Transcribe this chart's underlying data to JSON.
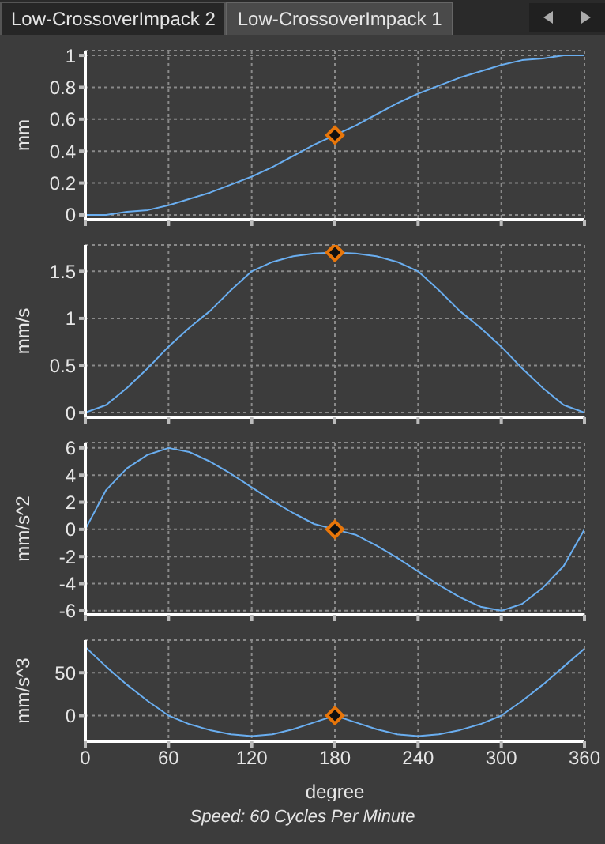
{
  "chart_data": [
    {
      "type": "line",
      "title": "Low-CrossoverImpack 1",
      "annotations": [
        "Low-CrossoverImpack 2"
      ],
      "ylabel": "mm",
      "x": [
        0,
        15,
        30,
        45,
        60,
        75,
        90,
        105,
        120,
        135,
        150,
        165,
        180,
        195,
        210,
        225,
        240,
        255,
        270,
        285,
        300,
        315,
        330,
        345,
        360
      ],
      "xlim": [
        0,
        360
      ],
      "xticks": [
        0,
        60,
        120,
        180,
        240,
        300,
        360
      ],
      "ylim": [
        -0.03,
        1.03
      ],
      "yticks": [
        0,
        0.2,
        0.4,
        0.6,
        0.8,
        1
      ],
      "grid": true,
      "tick_labels": "y",
      "series": [
        {
          "color": "#6aaef0",
          "values": [
            0,
            0,
            0.02,
            0.03,
            0.06,
            0.1,
            0.14,
            0.19,
            0.24,
            0.3,
            0.37,
            0.44,
            0.5,
            0.56,
            0.63,
            0.7,
            0.76,
            0.81,
            0.86,
            0.9,
            0.94,
            0.97,
            0.98,
            1,
            1
          ]
        },
        {
          "type": "scatter",
          "marker": "diamond",
          "color": "#e8760a",
          "values": [
            null,
            null,
            null,
            null,
            null,
            null,
            null,
            null,
            null,
            null,
            null,
            null,
            0.5,
            null,
            null,
            null,
            null,
            null,
            null,
            null,
            null,
            null,
            null,
            null,
            null
          ]
        }
      ]
    },
    {
      "type": "line",
      "ylabel": "mm/s",
      "x": [
        0,
        15,
        30,
        45,
        60,
        75,
        90,
        105,
        120,
        135,
        150,
        165,
        180,
        195,
        210,
        225,
        240,
        255,
        270,
        285,
        300,
        315,
        330,
        345,
        360
      ],
      "xlim": [
        0,
        360
      ],
      "xticks": [
        0,
        60,
        120,
        180,
        240,
        300,
        360
      ],
      "ylim": [
        -0.05,
        1.78
      ],
      "yticks": [
        0,
        0.5,
        1,
        1.5
      ],
      "grid": true,
      "tick_labels": "y",
      "series": [
        {
          "color": "#6aaef0",
          "values": [
            0,
            0.08,
            0.26,
            0.47,
            0.7,
            0.9,
            1.08,
            1.3,
            1.5,
            1.6,
            1.66,
            1.69,
            1.7,
            1.69,
            1.66,
            1.6,
            1.5,
            1.3,
            1.08,
            0.9,
            0.7,
            0.47,
            0.26,
            0.08,
            0
          ]
        },
        {
          "type": "scatter",
          "marker": "diamond",
          "color": "#e8760a",
          "values": [
            null,
            null,
            null,
            null,
            null,
            null,
            null,
            null,
            null,
            null,
            null,
            null,
            1.7,
            null,
            null,
            null,
            null,
            null,
            null,
            null,
            null,
            null,
            null,
            null,
            null
          ]
        }
      ]
    },
    {
      "type": "line",
      "ylabel": "mm/s^2",
      "x": [
        0,
        15,
        30,
        45,
        60,
        75,
        90,
        105,
        120,
        135,
        150,
        165,
        180,
        195,
        210,
        225,
        240,
        255,
        270,
        285,
        300,
        315,
        330,
        345,
        360
      ],
      "xlim": [
        0,
        360
      ],
      "xticks": [
        0,
        60,
        120,
        180,
        240,
        300,
        360
      ],
      "ylim": [
        -6.3,
        6.4
      ],
      "yticks": [
        -6,
        -4,
        -2,
        0,
        2,
        4,
        6
      ],
      "grid": true,
      "tick_labels": "y",
      "series": [
        {
          "color": "#6aaef0",
          "values": [
            0,
            2.9,
            4.5,
            5.5,
            6,
            5.7,
            5,
            4.1,
            3.1,
            2.1,
            1.2,
            0.4,
            0,
            -0.4,
            -1.2,
            -2.1,
            -3.1,
            -4.1,
            -5,
            -5.7,
            -6,
            -5.5,
            -4.3,
            -2.7,
            0
          ]
        },
        {
          "type": "scatter",
          "marker": "diamond",
          "color": "#e8760a",
          "values": [
            null,
            null,
            null,
            null,
            null,
            null,
            null,
            null,
            null,
            null,
            null,
            null,
            0,
            null,
            null,
            null,
            null,
            null,
            null,
            null,
            null,
            null,
            null,
            null,
            null
          ]
        }
      ]
    },
    {
      "type": "line",
      "ylabel": "mm/s^3",
      "xlabel": "degree",
      "annotations": [
        "Speed: 60 Cycles Per Minute"
      ],
      "x": [
        0,
        15,
        30,
        45,
        60,
        75,
        90,
        105,
        120,
        135,
        150,
        165,
        180,
        195,
        210,
        225,
        240,
        255,
        270,
        285,
        300,
        315,
        330,
        345,
        360
      ],
      "xlim": [
        0,
        360
      ],
      "xticks": [
        0,
        60,
        120,
        180,
        240,
        300,
        360
      ],
      "ylim": [
        -30,
        88
      ],
      "yticks": [
        0,
        50
      ],
      "grid": true,
      "series": [
        {
          "color": "#6aaef0",
          "values": [
            80,
            57,
            36,
            17,
            0,
            -10,
            -17,
            -22,
            -24,
            -22,
            -16,
            -8,
            0,
            -8,
            -16,
            -22,
            -24,
            -22,
            -17,
            -10,
            0,
            17,
            36,
            57,
            78
          ]
        },
        {
          "type": "scatter",
          "marker": "diamond",
          "color": "#e8760a",
          "values": [
            null,
            null,
            null,
            null,
            null,
            null,
            null,
            null,
            null,
            null,
            null,
            null,
            0,
            null,
            null,
            null,
            null,
            null,
            null,
            null,
            null,
            null,
            null,
            null,
            null
          ]
        }
      ]
    }
  ]
}
